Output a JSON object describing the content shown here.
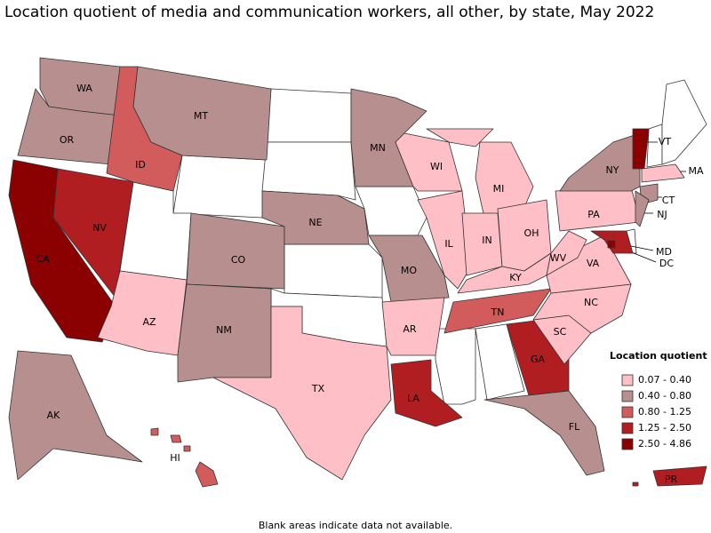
{
  "title": "Location quotient of media and communication workers, all other, by state, May 2022",
  "legend": {
    "title": "Location quotient",
    "items": [
      {
        "label": "0.07 - 0.40",
        "color": "#ffbfc6"
      },
      {
        "label": "0.40 - 0.80",
        "color": "#b88f8f"
      },
      {
        "label": "0.80 - 1.25",
        "color": "#d25c5c"
      },
      {
        "label": "1.25 - 2.50",
        "color": "#b01e22"
      },
      {
        "label": "2.50 - 4.86",
        "color": "#8b0000"
      }
    ]
  },
  "states": [
    {
      "label": "WA",
      "class": 1
    },
    {
      "label": "OR",
      "class": 1
    },
    {
      "label": "CA",
      "class": 4
    },
    {
      "label": "NV",
      "class": 3
    },
    {
      "label": "ID",
      "class": 2
    },
    {
      "label": "MT",
      "class": 1
    },
    {
      "label": "AZ",
      "class": 0
    },
    {
      "label": "CO",
      "class": 1
    },
    {
      "label": "NM",
      "class": 1
    },
    {
      "label": "NE",
      "class": 1
    },
    {
      "label": "TX",
      "class": 0
    },
    {
      "label": "MN",
      "class": 1
    },
    {
      "label": "MO",
      "class": 1
    },
    {
      "label": "AR",
      "class": 0
    },
    {
      "label": "LA",
      "class": 3
    },
    {
      "label": "WI",
      "class": 0
    },
    {
      "label": "IL",
      "class": 0
    },
    {
      "label": "MI",
      "class": 0
    },
    {
      "label": "IN",
      "class": 0
    },
    {
      "label": "OH",
      "class": 0
    },
    {
      "label": "KY",
      "class": 0
    },
    {
      "label": "TN",
      "class": 2
    },
    {
      "label": "GA",
      "class": 3
    },
    {
      "label": "FL",
      "class": 1
    },
    {
      "label": "SC",
      "class": 0
    },
    {
      "label": "NC",
      "class": 0
    },
    {
      "label": "VA",
      "class": 0
    },
    {
      "label": "WV",
      "class": 0
    },
    {
      "label": "PA",
      "class": 0
    },
    {
      "label": "NY",
      "class": 1
    },
    {
      "label": "VT",
      "class": 4
    },
    {
      "label": "MA",
      "class": 0
    },
    {
      "label": "CT",
      "class": 1
    },
    {
      "label": "NJ",
      "class": 1
    },
    {
      "label": "MD",
      "class": 3
    },
    {
      "label": "DC",
      "class": 4
    },
    {
      "label": "AK",
      "class": 1
    },
    {
      "label": "HI",
      "class": 2
    },
    {
      "label": "PR",
      "class": 3
    }
  ],
  "footnote": "Blank areas indicate data not available."
}
